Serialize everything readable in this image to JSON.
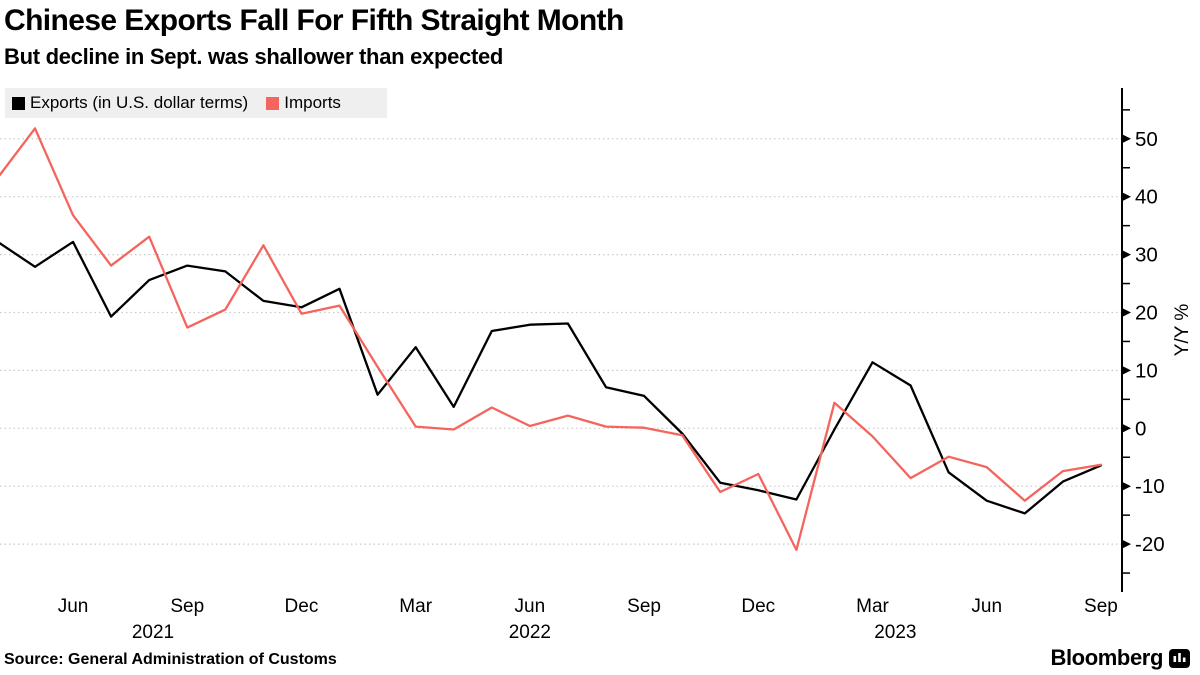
{
  "header": {
    "title": "Chinese Exports Fall For Fifth Straight Month",
    "subtitle": "But decline in Sept. was shallower than expected"
  },
  "legend": {
    "entries": [
      {
        "label": "Exports (in U.S. dollar terms)",
        "color": "#000000"
      },
      {
        "label": "Imports",
        "color": "#f4655e"
      }
    ],
    "background": "#efefef"
  },
  "chart_data": {
    "type": "line",
    "title": "Chinese Exports Fall For Fifth Straight Month",
    "subtitle": "But decline in Sept. was shallower than expected",
    "xlabel": "",
    "ylabel": "Y/Y %",
    "ylim": [
      -27,
      57
    ],
    "grid": "horizontal dotted lines at every 10 units",
    "legend_position": "top-left",
    "x": [
      "Apr 2021",
      "May 2021",
      "Jun 2021",
      "Jul 2021",
      "Aug 2021",
      "Sep 2021",
      "Oct 2021",
      "Nov 2021",
      "Dec 2021",
      "Jan 2022",
      "Feb 2022",
      "Mar 2022",
      "Apr 2022",
      "May 2022",
      "Jun 2022",
      "Jul 2022",
      "Aug 2022",
      "Sep 2022",
      "Oct 2022",
      "Nov 2022",
      "Dec 2022",
      "Jan 2023",
      "Feb 2023",
      "Mar 2023",
      "Apr 2023",
      "May 2023",
      "Jun 2023",
      "Jul 2023",
      "Aug 2023",
      "Sep 2023"
    ],
    "series": [
      {
        "name": "Exports (in U.S. dollar terms)",
        "color": "#000000",
        "values": [
          32.3,
          27.9,
          32.2,
          19.3,
          25.6,
          28.1,
          27.1,
          22.0,
          20.9,
          24.1,
          5.8,
          14.0,
          3.7,
          16.8,
          17.9,
          18.1,
          7.1,
          5.6,
          -0.9,
          -9.4,
          -10.7,
          -12.3,
          -0.2,
          11.4,
          7.4,
          -7.6,
          -12.5,
          -14.7,
          -9.2,
          -6.4
        ]
      },
      {
        "name": "Imports",
        "color": "#f4655e",
        "values": [
          43.1,
          51.8,
          36.8,
          28.1,
          33.1,
          17.4,
          20.5,
          31.6,
          19.8,
          21.2,
          10.6,
          0.3,
          -0.2,
          3.6,
          0.4,
          2.2,
          0.3,
          0.1,
          -1.2,
          -11.0,
          -7.9,
          -21.0,
          4.4,
          -1.4,
          -8.6,
          -4.9,
          -6.7,
          -12.5,
          -7.4,
          -6.3
        ]
      }
    ],
    "y_major_ticks": [
      50,
      40,
      30,
      20,
      10,
      0,
      -10,
      -20
    ],
    "y_minor_ticks": [
      55,
      45,
      35,
      25,
      15,
      5,
      -5,
      -15,
      -25
    ],
    "x_tick_labels": [
      "Jun",
      "Sep",
      "Dec",
      "Mar",
      "Jun",
      "Sep",
      "Dec",
      "Mar",
      "Jun",
      "Sep"
    ],
    "x_tick_month_indices": [
      2,
      5,
      8,
      11,
      14,
      17,
      20,
      23,
      26,
      29
    ],
    "year_labels": [
      {
        "text": "2021",
        "month_index": 4.1
      },
      {
        "text": "2022",
        "month_index": 14.0
      },
      {
        "text": "2023",
        "month_index": 23.6
      }
    ],
    "gridline_color": "#c9c9c9",
    "axis_color": "#000000"
  },
  "footer": {
    "source": "Source: General Administration of Customs",
    "brand": "Bloomberg"
  }
}
